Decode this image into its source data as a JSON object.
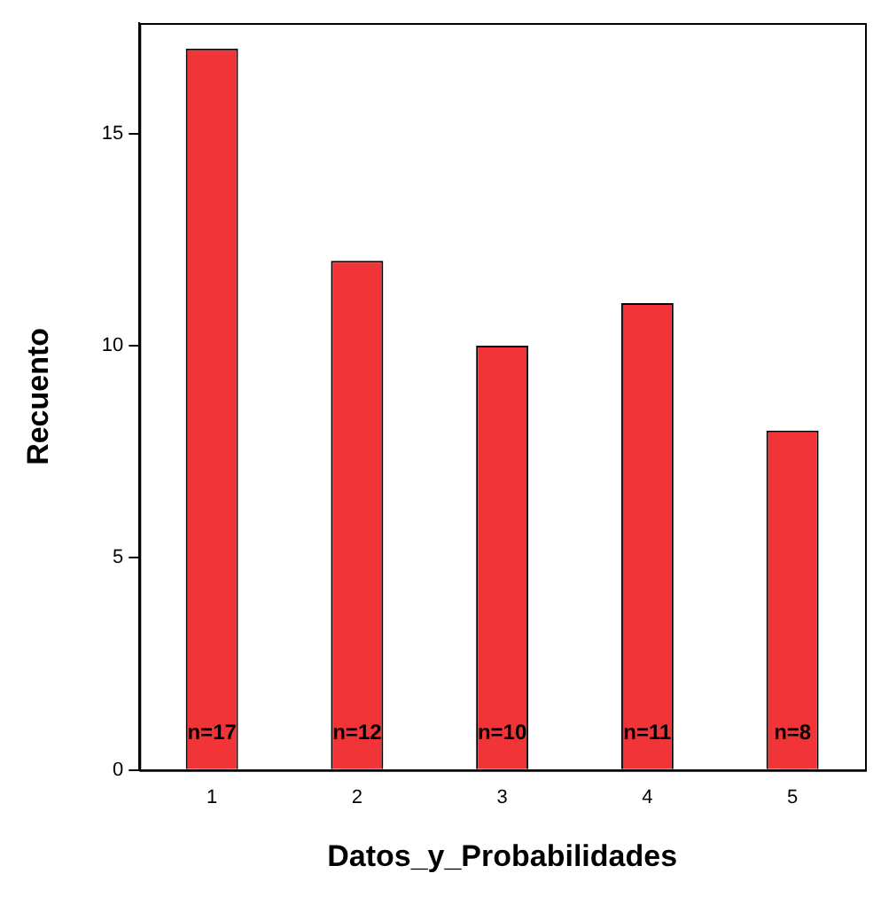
{
  "chart_data": {
    "type": "bar",
    "xlabel": "Datos_y_Probabilidades",
    "ylabel": "Recuento",
    "categories": [
      "1",
      "2",
      "3",
      "4",
      "5"
    ],
    "values": [
      17,
      12,
      10,
      11,
      8
    ],
    "value_labels": [
      "n=17",
      "n=12",
      "n=10",
      "n=11",
      "n=8"
    ],
    "color": "#f03438",
    "ylim": [
      0,
      17.6
    ],
    "yticks": [
      0,
      5,
      10,
      15
    ],
    "grid": false,
    "legend": false
  }
}
